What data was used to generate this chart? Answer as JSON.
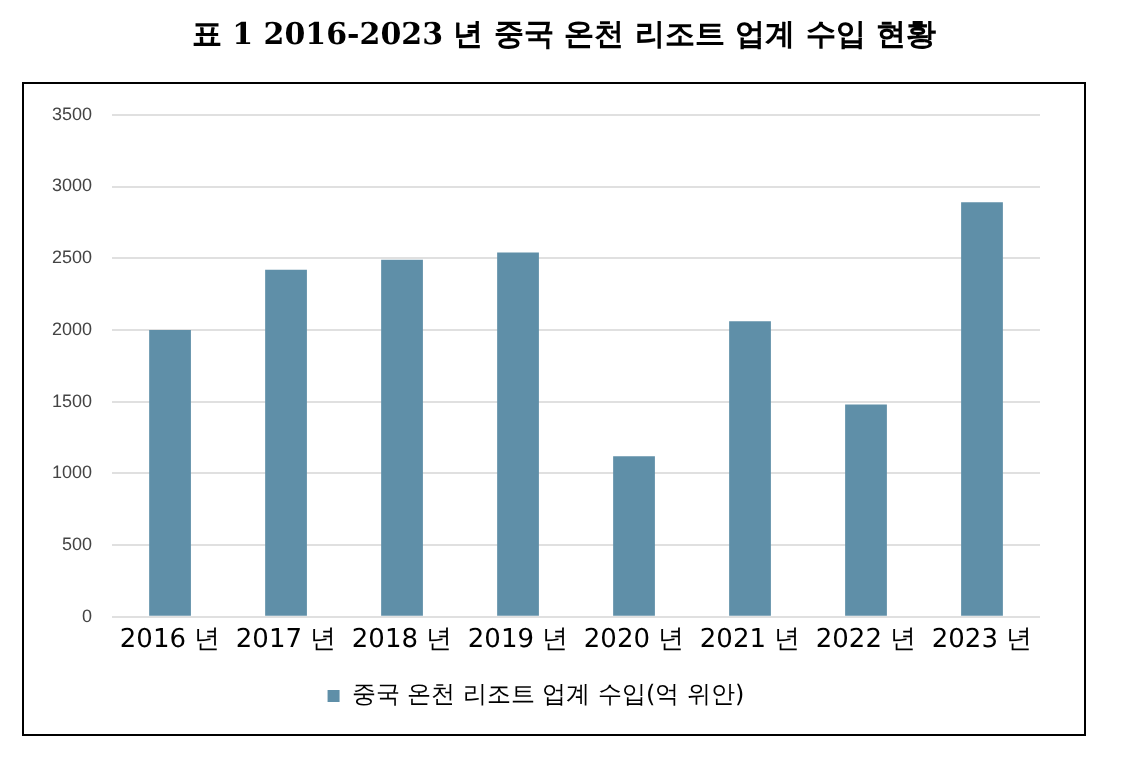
{
  "chart_data": {
    "type": "bar",
    "title": "표 1 2016-2023 년 중국 온천 리조트 업계 수입 현황",
    "categories": [
      "2016 년",
      "2017 년",
      "2018 년",
      "2019 년",
      "2020 년",
      "2021 년",
      "2022 년",
      "2023 년"
    ],
    "series": [
      {
        "name": "중국 온천 리조트 업계 수입(억 위안)",
        "color": "#5f8fa8",
        "values": [
          2000,
          2420,
          2490,
          2540,
          1120,
          2060,
          1480,
          2890
        ]
      }
    ],
    "ylim": [
      0,
      3500
    ],
    "yticks": [
      0,
      500,
      1000,
      1500,
      2000,
      2500,
      3000,
      3500
    ],
    "grid": "y",
    "legend": "bottom"
  }
}
